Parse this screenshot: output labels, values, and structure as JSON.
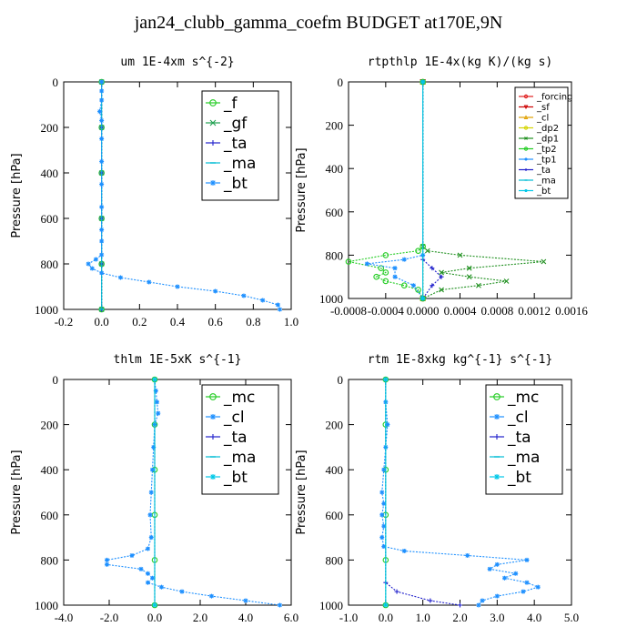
{
  "title": "jan24_clubb_gamma_coefm  BUDGET at170E,9N",
  "chart_data": [
    {
      "type": "line",
      "title": "um   1E-4xm s^{-2}",
      "ylabel": "Pressure [hPa]",
      "xlim": [
        -0.2,
        1.0
      ],
      "ylim": [
        1000,
        0
      ],
      "xticks": [
        "-0.2",
        "0.0",
        "0.2",
        "0.4",
        "0.6",
        "0.8",
        "1.0"
      ],
      "xtick_values": [
        -0.2,
        0.0,
        0.2,
        0.4,
        0.6,
        0.8,
        1.0
      ],
      "yticks": [
        "0",
        "200",
        "400",
        "600",
        "800",
        "1000"
      ],
      "legend": {
        "position": "top-right",
        "font": 17
      },
      "series": [
        {
          "name": "_f",
          "color": "#22cc22",
          "marker": "o",
          "points": [
            [
              0,
              0
            ],
            [
              0,
              200
            ],
            [
              0,
              400
            ],
            [
              0,
              600
            ],
            [
              0,
              800
            ],
            [
              0,
              1000
            ]
          ]
        },
        {
          "name": "_gf",
          "color": "#20a050",
          "marker": "x",
          "points": [
            [
              0,
              0
            ],
            [
              0,
              200
            ],
            [
              0,
              400
            ],
            [
              0,
              600
            ],
            [
              0,
              800
            ],
            [
              0,
              1000
            ]
          ]
        },
        {
          "name": "_ta",
          "color": "#2020cc",
          "marker": "+",
          "points": [
            [
              0,
              0
            ],
            [
              0,
              200
            ],
            [
              0,
              400
            ],
            [
              0,
              600
            ],
            [
              0,
              800
            ],
            [
              0,
              1000
            ]
          ]
        },
        {
          "name": "_ma",
          "color": "#00bcd4",
          "marker": "-",
          "points": [
            [
              0,
              0
            ],
            [
              0,
              1000
            ]
          ]
        },
        {
          "name": "_bt",
          "color": "#1e90ff",
          "marker": "*",
          "points": [
            [
              0,
              0
            ],
            [
              0,
              40
            ],
            [
              0,
              80
            ],
            [
              -0.01,
              130
            ],
            [
              0,
              170
            ],
            [
              0,
              250
            ],
            [
              0,
              350
            ],
            [
              0,
              450
            ],
            [
              0,
              550
            ],
            [
              0,
              650
            ],
            [
              0,
              700
            ],
            [
              0,
              760
            ],
            [
              -0.03,
              780
            ],
            [
              -0.07,
              800
            ],
            [
              -0.05,
              820
            ],
            [
              0,
              840
            ],
            [
              0.1,
              860
            ],
            [
              0.25,
              880
            ],
            [
              0.4,
              900
            ],
            [
              0.6,
              920
            ],
            [
              0.75,
              940
            ],
            [
              0.85,
              960
            ],
            [
              0.93,
              980
            ],
            [
              0.94,
              1000
            ]
          ]
        }
      ]
    },
    {
      "type": "line",
      "title": "rtpthlp   1E-4x(kg K)/(kg s)",
      "ylabel": "Pressure [hPa]",
      "xlim": [
        -0.0008,
        0.0016
      ],
      "ylim": [
        1000,
        0
      ],
      "xticks": [
        "-0.0008",
        "-0.0004",
        "0.0000",
        "0.0004",
        "0.0008",
        "0.0012",
        "0.0016"
      ],
      "xtick_values": [
        -0.0008,
        -0.0004,
        0,
        0.0004,
        0.0008,
        0.0012,
        0.0016
      ],
      "yticks": [
        "0",
        "200",
        "400",
        "600",
        "800",
        "1000"
      ],
      "legend": {
        "position": "top-right",
        "font": 10
      },
      "series": [
        {
          "name": "_forcing",
          "color": "#e02020",
          "marker": "o",
          "points": [
            [
              0,
              0
            ],
            [
              0,
              1000
            ]
          ]
        },
        {
          "name": "_sf",
          "color": "#cc0000",
          "marker": "v",
          "points": [
            [
              0,
              0
            ],
            [
              0,
              1000
            ]
          ]
        },
        {
          "name": "_cl",
          "color": "#e0a000",
          "marker": "^",
          "points": [
            [
              0,
              0
            ],
            [
              0,
              1000
            ]
          ]
        },
        {
          "name": "_dp2",
          "color": "#d4d400",
          "marker": "o",
          "points": [
            [
              0,
              0
            ],
            [
              0,
              1000
            ]
          ]
        },
        {
          "name": "_dp1",
          "color": "#209020",
          "marker": "x",
          "points": [
            [
              0,
              0
            ],
            [
              0,
              760
            ],
            [
              5e-05,
              780
            ],
            [
              0.0004,
              800
            ],
            [
              0.0013,
              830
            ],
            [
              0.0005,
              860
            ],
            [
              0.0002,
              880
            ],
            [
              0.0005,
              900
            ],
            [
              0.0009,
              920
            ],
            [
              0.0006,
              940
            ],
            [
              0.0002,
              960
            ],
            [
              0,
              1000
            ]
          ]
        },
        {
          "name": "_tp2",
          "color": "#22cc22",
          "marker": "o",
          "points": [
            [
              0,
              0
            ],
            [
              0,
              760
            ],
            [
              -5e-05,
              780
            ],
            [
              -0.0004,
              800
            ],
            [
              -0.0008,
              830
            ],
            [
              -0.00045,
              860
            ],
            [
              -0.0004,
              880
            ],
            [
              -0.0005,
              900
            ],
            [
              -0.0004,
              920
            ],
            [
              -0.0002,
              940
            ],
            [
              -5e-05,
              960
            ],
            [
              0,
              1000
            ]
          ]
        },
        {
          "name": "_tp1",
          "color": "#1e90ff",
          "marker": "*",
          "points": [
            [
              0,
              0
            ],
            [
              0,
              800
            ],
            [
              -0.0002,
              820
            ],
            [
              -0.0006,
              840
            ],
            [
              -0.0003,
              860
            ],
            [
              -0.0003,
              900
            ],
            [
              -0.0001,
              940
            ],
            [
              0,
              1000
            ]
          ]
        },
        {
          "name": "_ta",
          "color": "#2020cc",
          "marker": "+",
          "points": [
            [
              0,
              0
            ],
            [
              0,
              820
            ],
            [
              0.0001,
              860
            ],
            [
              0.0002,
              900
            ],
            [
              0.0001,
              940
            ],
            [
              0,
              1000
            ]
          ]
        },
        {
          "name": "_ma",
          "color": "#00bcd4",
          "marker": "-",
          "points": [
            [
              0,
              0
            ],
            [
              0,
              1000
            ]
          ]
        },
        {
          "name": "_bt",
          "color": "#00c8e8",
          "marker": "*",
          "points": [
            [
              0,
              0
            ],
            [
              0,
              1000
            ]
          ]
        }
      ]
    },
    {
      "type": "line",
      "title": "thlm   1E-5xK s^{-1}",
      "ylabel": "Pressure [hPa]",
      "xlim": [
        -4.0,
        6.0
      ],
      "ylim": [
        1000,
        0
      ],
      "xticks": [
        "-4.0",
        "-2.0",
        "0.0",
        "2.0",
        "4.0",
        "6.0"
      ],
      "xtick_values": [
        -4,
        -2,
        0,
        2,
        4,
        6
      ],
      "yticks": [
        "0",
        "200",
        "400",
        "600",
        "800",
        "1000"
      ],
      "legend": {
        "position": "top-right",
        "font": 17
      },
      "series": [
        {
          "name": "_mc",
          "color": "#22cc22",
          "marker": "o",
          "points": [
            [
              0,
              0
            ],
            [
              0,
              200
            ],
            [
              0,
              400
            ],
            [
              0,
              600
            ],
            [
              0,
              800
            ],
            [
              0,
              1000
            ]
          ]
        },
        {
          "name": "_cl",
          "color": "#1e90ff",
          "marker": "*",
          "points": [
            [
              0,
              0
            ],
            [
              0.05,
              50
            ],
            [
              0.1,
              100
            ],
            [
              0.15,
              150
            ],
            [
              0,
              200
            ],
            [
              -0.05,
              300
            ],
            [
              -0.1,
              400
            ],
            [
              -0.15,
              500
            ],
            [
              -0.2,
              600
            ],
            [
              -0.15,
              700
            ],
            [
              -0.3,
              750
            ],
            [
              -1,
              780
            ],
            [
              -2.1,
              800
            ],
            [
              -2.1,
              820
            ],
            [
              -0.6,
              840
            ],
            [
              -0.3,
              860
            ],
            [
              -0.1,
              880
            ],
            [
              -0.3,
              900
            ],
            [
              0.3,
              920
            ],
            [
              1.2,
              940
            ],
            [
              2.5,
              960
            ],
            [
              4,
              980
            ],
            [
              5.5,
              1000
            ]
          ]
        },
        {
          "name": "_ta",
          "color": "#2020cc",
          "marker": "+",
          "points": [
            [
              0,
              0
            ],
            [
              0,
              1000
            ]
          ]
        },
        {
          "name": "_ma",
          "color": "#00bcd4",
          "marker": "-",
          "points": [
            [
              0,
              0
            ],
            [
              0,
              1000
            ]
          ]
        },
        {
          "name": "_bt",
          "color": "#00c8e8",
          "marker": "*",
          "points": [
            [
              0,
              0
            ],
            [
              0,
              1000
            ]
          ]
        }
      ]
    },
    {
      "type": "line",
      "title": "rtm   1E-8xkg kg^{-1} s^{-1}",
      "ylabel": "Pressure [hPa]",
      "xlim": [
        -1.0,
        5.0
      ],
      "ylim": [
        1000,
        0
      ],
      "xticks": [
        "-1.0",
        "0.0",
        "1.0",
        "2.0",
        "3.0",
        "4.0",
        "5.0"
      ],
      "xtick_values": [
        -1,
        0,
        1,
        2,
        3,
        4,
        5
      ],
      "yticks": [
        "0",
        "200",
        "400",
        "600",
        "800",
        "1000"
      ],
      "legend": {
        "position": "top-right",
        "font": 17
      },
      "series": [
        {
          "name": "_mc",
          "color": "#22cc22",
          "marker": "o",
          "points": [
            [
              0,
              0
            ],
            [
              0,
              200
            ],
            [
              0,
              400
            ],
            [
              0,
              600
            ],
            [
              0,
              800
            ],
            [
              0,
              1000
            ]
          ]
        },
        {
          "name": "_cl",
          "color": "#1e90ff",
          "marker": "*",
          "points": [
            [
              0,
              0
            ],
            [
              0,
              100
            ],
            [
              0.05,
              200
            ],
            [
              0,
              300
            ],
            [
              -0.05,
              400
            ],
            [
              -0.1,
              500
            ],
            [
              -0.05,
              550
            ],
            [
              -0.1,
              600
            ],
            [
              -0.05,
              650
            ],
            [
              -0.1,
              700
            ],
            [
              -0.05,
              740
            ],
            [
              0.5,
              760
            ],
            [
              2.2,
              780
            ],
            [
              3.8,
              800
            ],
            [
              3.0,
              820
            ],
            [
              2.8,
              840
            ],
            [
              3.5,
              860
            ],
            [
              3.2,
              880
            ],
            [
              3.8,
              900
            ],
            [
              4.1,
              920
            ],
            [
              3.7,
              940
            ],
            [
              3.0,
              960
            ],
            [
              2.6,
              980
            ],
            [
              2.5,
              1000
            ]
          ]
        },
        {
          "name": "_ta",
          "color": "#2020cc",
          "marker": "+",
          "points": [
            [
              0,
              0
            ],
            [
              0,
              900
            ],
            [
              0.3,
              940
            ],
            [
              1.2,
              980
            ],
            [
              2.0,
              1000
            ]
          ]
        },
        {
          "name": "_ma",
          "color": "#00bcd4",
          "marker": "-",
          "points": [
            [
              0,
              0
            ],
            [
              0,
              1000
            ]
          ]
        },
        {
          "name": "_bt",
          "color": "#00c8e8",
          "marker": "*",
          "points": [
            [
              0,
              0
            ],
            [
              0,
              1000
            ]
          ]
        }
      ]
    }
  ]
}
